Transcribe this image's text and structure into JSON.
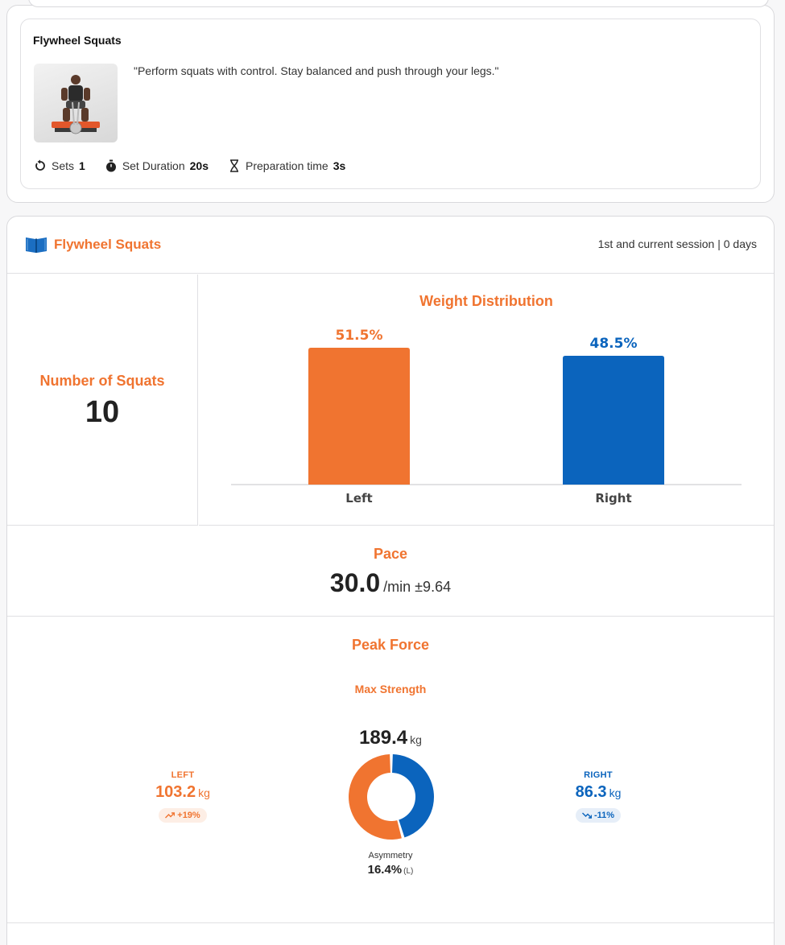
{
  "exercise": {
    "title": "Flywheel Squats",
    "description": "\"Perform squats with control. Stay balanced and push through your legs.\"",
    "meta": [
      {
        "icon": "repeat-icon",
        "label": "Sets",
        "value": "1"
      },
      {
        "icon": "stopwatch-icon",
        "label": "Set Duration",
        "value": "20s"
      },
      {
        "icon": "hourglass-icon",
        "label": "Preparation time",
        "value": "3s"
      }
    ]
  },
  "report": {
    "title": "Flywheel Squats",
    "session_info": "1st and current session | 0 days",
    "squats": {
      "label": "Number of Squats",
      "value": "10"
    },
    "weight_distribution": {
      "title": "Weight Distribution"
    },
    "pace": {
      "title": "Pace",
      "value": "30.0",
      "unit": "/min ±9.64"
    },
    "peak_force": {
      "title": "Peak Force",
      "subtitle": "Max Strength",
      "total": "189.4",
      "total_unit": "kg",
      "left": {
        "label": "LEFT",
        "value": "103.2",
        "unit": "kg",
        "delta": "+19%"
      },
      "right": {
        "label": "RIGHT",
        "value": "86.3",
        "unit": "kg",
        "delta": "-11%"
      },
      "asymmetry_label": "Asymmetry",
      "asymmetry_value": "16.4%",
      "asymmetry_side": "(L)"
    }
  },
  "colors": {
    "accent": "#f07430",
    "blue": "#0b64bd",
    "left_bg": "#fdeee5",
    "right_bg": "#e6eef8"
  },
  "chart_data": [
    {
      "type": "bar",
      "title": "Weight Distribution",
      "categories": [
        "Left",
        "Right"
      ],
      "values": [
        51.5,
        48.5
      ],
      "labels": [
        "51.5%",
        "48.5%"
      ],
      "colors": [
        "#f07430",
        "#0b64bd"
      ],
      "ylim": [
        0,
        100
      ]
    },
    {
      "type": "pie",
      "title": "Peak Force",
      "categories": [
        "Left",
        "Right"
      ],
      "values": [
        103.2,
        86.3
      ],
      "colors": [
        "#f07430",
        "#0b64bd"
      ]
    }
  ]
}
